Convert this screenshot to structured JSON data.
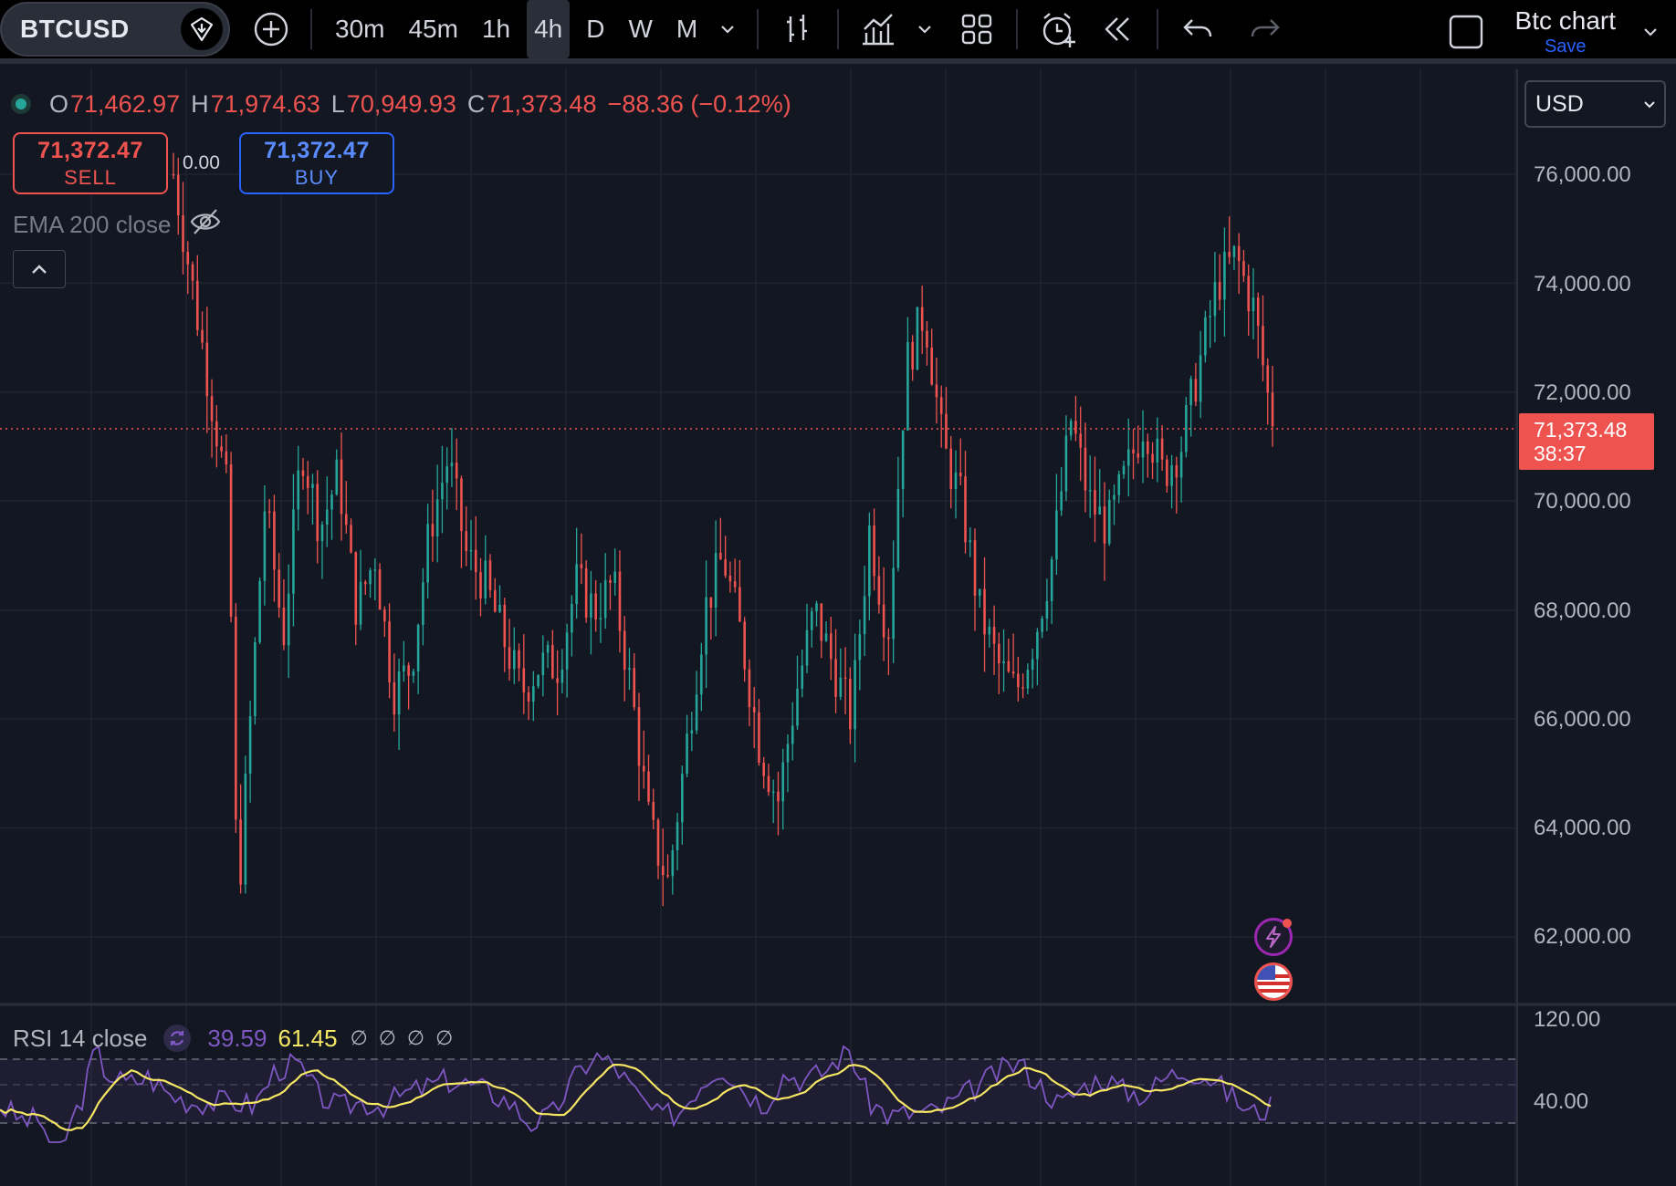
{
  "toolbar": {
    "symbol": "BTCUSD",
    "timeframes": [
      {
        "label": "30m",
        "active": false
      },
      {
        "label": "45m",
        "active": false
      },
      {
        "label": "1h",
        "active": false
      },
      {
        "label": "4h",
        "active": true
      },
      {
        "label": "D",
        "active": false
      },
      {
        "label": "W",
        "active": false
      },
      {
        "label": "M",
        "active": false
      }
    ],
    "icons": [
      "add-symbol-icon",
      "timeframe-dropdown-icon",
      "bar-style-icon",
      "indicators-icon",
      "indicators-dropdown-icon",
      "layouts-grid-icon",
      "alert-icon",
      "replay-icon",
      "undo-icon",
      "redo-icon",
      "fullscreen-icon",
      "layout-dropdown-icon"
    ],
    "layout_name": "Btc chart",
    "save_label": "Save"
  },
  "legend": {
    "o_key": "O",
    "o_val": "71,462.97",
    "h_key": "H",
    "h_val": "71,974.63",
    "l_key": "L",
    "l_val": "70,949.93",
    "c_key": "C",
    "c_val": "71,373.48",
    "change": "−88.36 (−0.12%)"
  },
  "trading": {
    "sell_price": "71,372.47",
    "sell_label": "SELL",
    "spread": "0.00",
    "buy_price": "71,372.47",
    "buy_label": "BUY"
  },
  "indicators": {
    "ema_label": "EMA 200 close"
  },
  "currency": "USD",
  "price_axis": [
    "76,000.00",
    "74,000.00",
    "72,000.00",
    "70,000.00",
    "68,000.00",
    "66,000.00",
    "64,000.00",
    "62,000.00"
  ],
  "current_price": {
    "price": "71,373.48",
    "countdown": "38:37"
  },
  "rsi": {
    "title": "RSI 14 close",
    "value": "39.59",
    "ma_value": "61.45",
    "na_values": [
      "∅",
      "∅",
      "∅",
      "∅"
    ],
    "axis": [
      "120.00",
      "40.00"
    ]
  },
  "colors": {
    "background": "#131722",
    "up": "#26a69a",
    "down": "#ef5350",
    "rsi_line": "#7e57c2",
    "rsi_ma": "#f5e663",
    "accent": "#2962ff"
  },
  "chart_data": {
    "type": "candlestick",
    "symbol": "BTCUSD",
    "interval": "4h",
    "ylim": [
      61000,
      77500
    ],
    "rsi_band": [
      30,
      70
    ],
    "approx_close_path": [
      [
        0,
        76000
      ],
      [
        2,
        74000
      ],
      [
        4,
        72000
      ],
      [
        6,
        70000
      ],
      [
        7,
        62500
      ],
      [
        8,
        65000
      ],
      [
        10,
        70000
      ],
      [
        12,
        67500
      ],
      [
        14,
        71000
      ],
      [
        16,
        69500
      ],
      [
        18,
        70500
      ],
      [
        20,
        68000
      ],
      [
        22,
        69000
      ],
      [
        24,
        66500
      ],
      [
        26,
        67000
      ],
      [
        28,
        69500
      ],
      [
        30,
        70800
      ],
      [
        32,
        69000
      ],
      [
        34,
        68500
      ],
      [
        36,
        67500
      ],
      [
        38,
        66500
      ],
      [
        40,
        67000
      ],
      [
        42,
        67000
      ],
      [
        44,
        68500
      ],
      [
        46,
        68000
      ],
      [
        48,
        68500
      ],
      [
        50,
        66500
      ],
      [
        52,
        64000
      ],
      [
        54,
        63000
      ],
      [
        56,
        65500
      ],
      [
        58,
        68000
      ],
      [
        60,
        69000
      ],
      [
        62,
        67500
      ],
      [
        64,
        65500
      ],
      [
        66,
        64500
      ],
      [
        68,
        66500
      ],
      [
        70,
        68000
      ],
      [
        72,
        67000
      ],
      [
        74,
        66000
      ],
      [
        76,
        69500
      ],
      [
        78,
        67500
      ],
      [
        80,
        72500
      ],
      [
        82,
        73500
      ],
      [
        84,
        71000
      ],
      [
        86,
        70000
      ],
      [
        88,
        68000
      ],
      [
        90,
        67000
      ],
      [
        92,
        66500
      ],
      [
        94,
        67500
      ],
      [
        96,
        69000
      ],
      [
        98,
        71500
      ],
      [
        100,
        70000
      ],
      [
        102,
        69500
      ],
      [
        104,
        70500
      ],
      [
        106,
        71500
      ],
      [
        108,
        70500
      ],
      [
        110,
        71000
      ],
      [
        112,
        72500
      ],
      [
        114,
        74000
      ],
      [
        116,
        74500
      ],
      [
        118,
        73500
      ],
      [
        120,
        71373
      ]
    ]
  }
}
